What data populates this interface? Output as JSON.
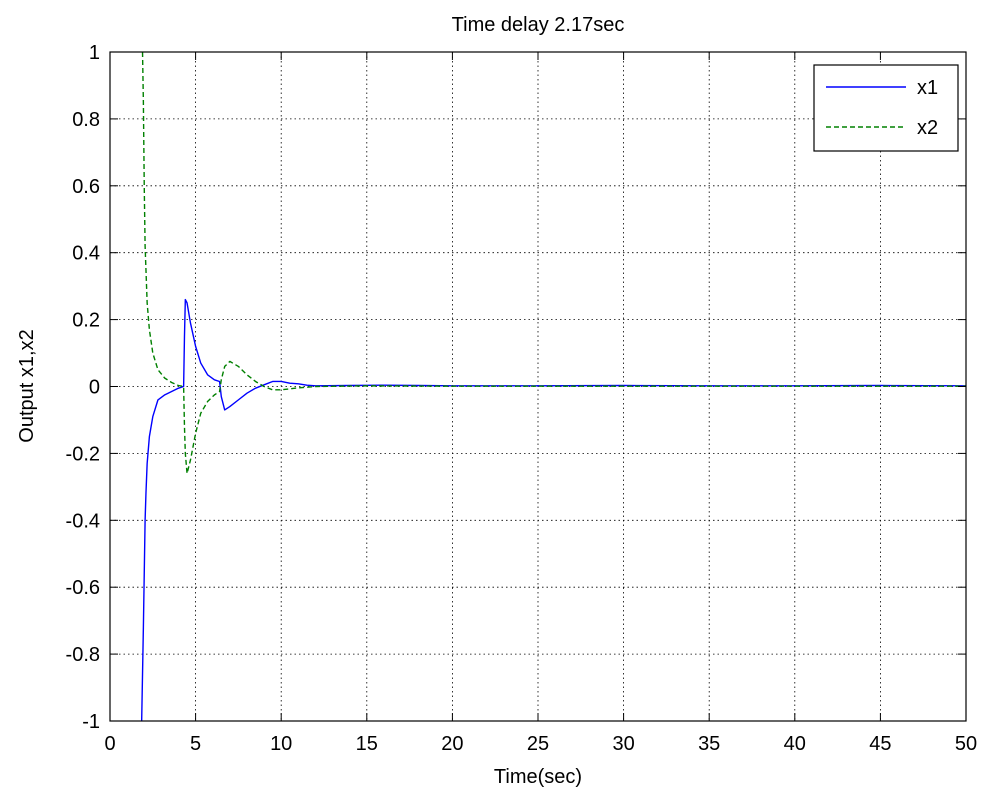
{
  "chart_data": {
    "type": "line",
    "title": "Time delay 2.17sec",
    "xlabel": "Time(sec)",
    "ylabel": "Output x1,x2",
    "xlim": [
      0,
      50
    ],
    "ylim": [
      -1,
      1
    ],
    "xticks": [
      0,
      5,
      10,
      15,
      20,
      25,
      30,
      35,
      40,
      45,
      50
    ],
    "yticks": [
      -1,
      -0.8,
      -0.6,
      -0.4,
      -0.2,
      0,
      0.2,
      0.4,
      0.6,
      0.8,
      1
    ],
    "xtick_labels": [
      "0",
      "5",
      "10",
      "15",
      "20",
      "25",
      "30",
      "35",
      "40",
      "45",
      "50"
    ],
    "ytick_labels": [
      "-1",
      "-0.8",
      "-0.6",
      "-0.4",
      "-0.2",
      "0",
      "0.2",
      "0.4",
      "0.6",
      "0.8",
      "1"
    ],
    "grid": true,
    "grid_style": "dotted",
    "legend_position": "top-right",
    "series": [
      {
        "name": "x1",
        "color": "#0000ff",
        "line_style": "solid",
        "x": [
          1.85,
          1.95,
          2.05,
          2.1,
          2.17,
          2.3,
          2.5,
          2.8,
          3.2,
          3.6,
          4.0,
          4.3,
          4.35,
          4.4,
          4.5,
          4.7,
          5.0,
          5.3,
          5.7,
          6.1,
          6.4,
          6.5,
          6.7,
          7.0,
          7.5,
          8.0,
          8.5,
          9.0,
          9.5,
          10.0,
          10.5,
          11.0,
          11.5,
          12.0,
          14.0,
          16.0,
          18.0,
          20.0,
          25.0,
          30.0,
          35.0,
          40.0,
          45.0,
          50.0
        ],
        "y": [
          -1.0,
          -0.72,
          -0.4,
          -0.32,
          -0.23,
          -0.15,
          -0.09,
          -0.04,
          -0.025,
          -0.015,
          -0.005,
          0.0,
          0.15,
          0.26,
          0.25,
          0.19,
          0.12,
          0.07,
          0.035,
          0.02,
          0.015,
          -0.03,
          -0.07,
          -0.06,
          -0.04,
          -0.02,
          -0.005,
          0.005,
          0.015,
          0.015,
          0.01,
          0.008,
          0.004,
          0.002,
          0.003,
          0.004,
          0.003,
          0.002,
          0.002,
          0.003,
          0.002,
          0.002,
          0.003,
          0.002
        ]
      },
      {
        "name": "x2",
        "color": "#008000",
        "line_style": "dashed",
        "x": [
          1.9,
          1.95,
          2.0,
          2.05,
          2.1,
          2.17,
          2.3,
          2.5,
          2.8,
          3.2,
          3.6,
          4.0,
          4.3,
          4.35,
          4.4,
          4.5,
          4.7,
          5.0,
          5.3,
          5.7,
          6.1,
          6.4,
          6.5,
          6.7,
          7.0,
          7.5,
          8.0,
          8.5,
          9.0,
          9.5,
          10.0,
          10.5,
          11.0,
          11.5,
          12.0,
          15.0,
          20.0,
          25.0,
          30.0,
          35.0,
          40.0,
          45.0,
          50.0
        ],
        "y": [
          1.0,
          0.85,
          0.6,
          0.42,
          0.35,
          0.25,
          0.17,
          0.1,
          0.05,
          0.025,
          0.012,
          0.003,
          0.0,
          -0.12,
          -0.2,
          -0.26,
          -0.22,
          -0.14,
          -0.08,
          -0.045,
          -0.025,
          -0.015,
          0.02,
          0.06,
          0.075,
          0.06,
          0.035,
          0.015,
          0.0,
          -0.01,
          -0.01,
          -0.007,
          -0.004,
          -0.002,
          0.0,
          0.002,
          0.001,
          0.001,
          0.001,
          0.001,
          0.001,
          0.001,
          0.001
        ]
      }
    ]
  }
}
